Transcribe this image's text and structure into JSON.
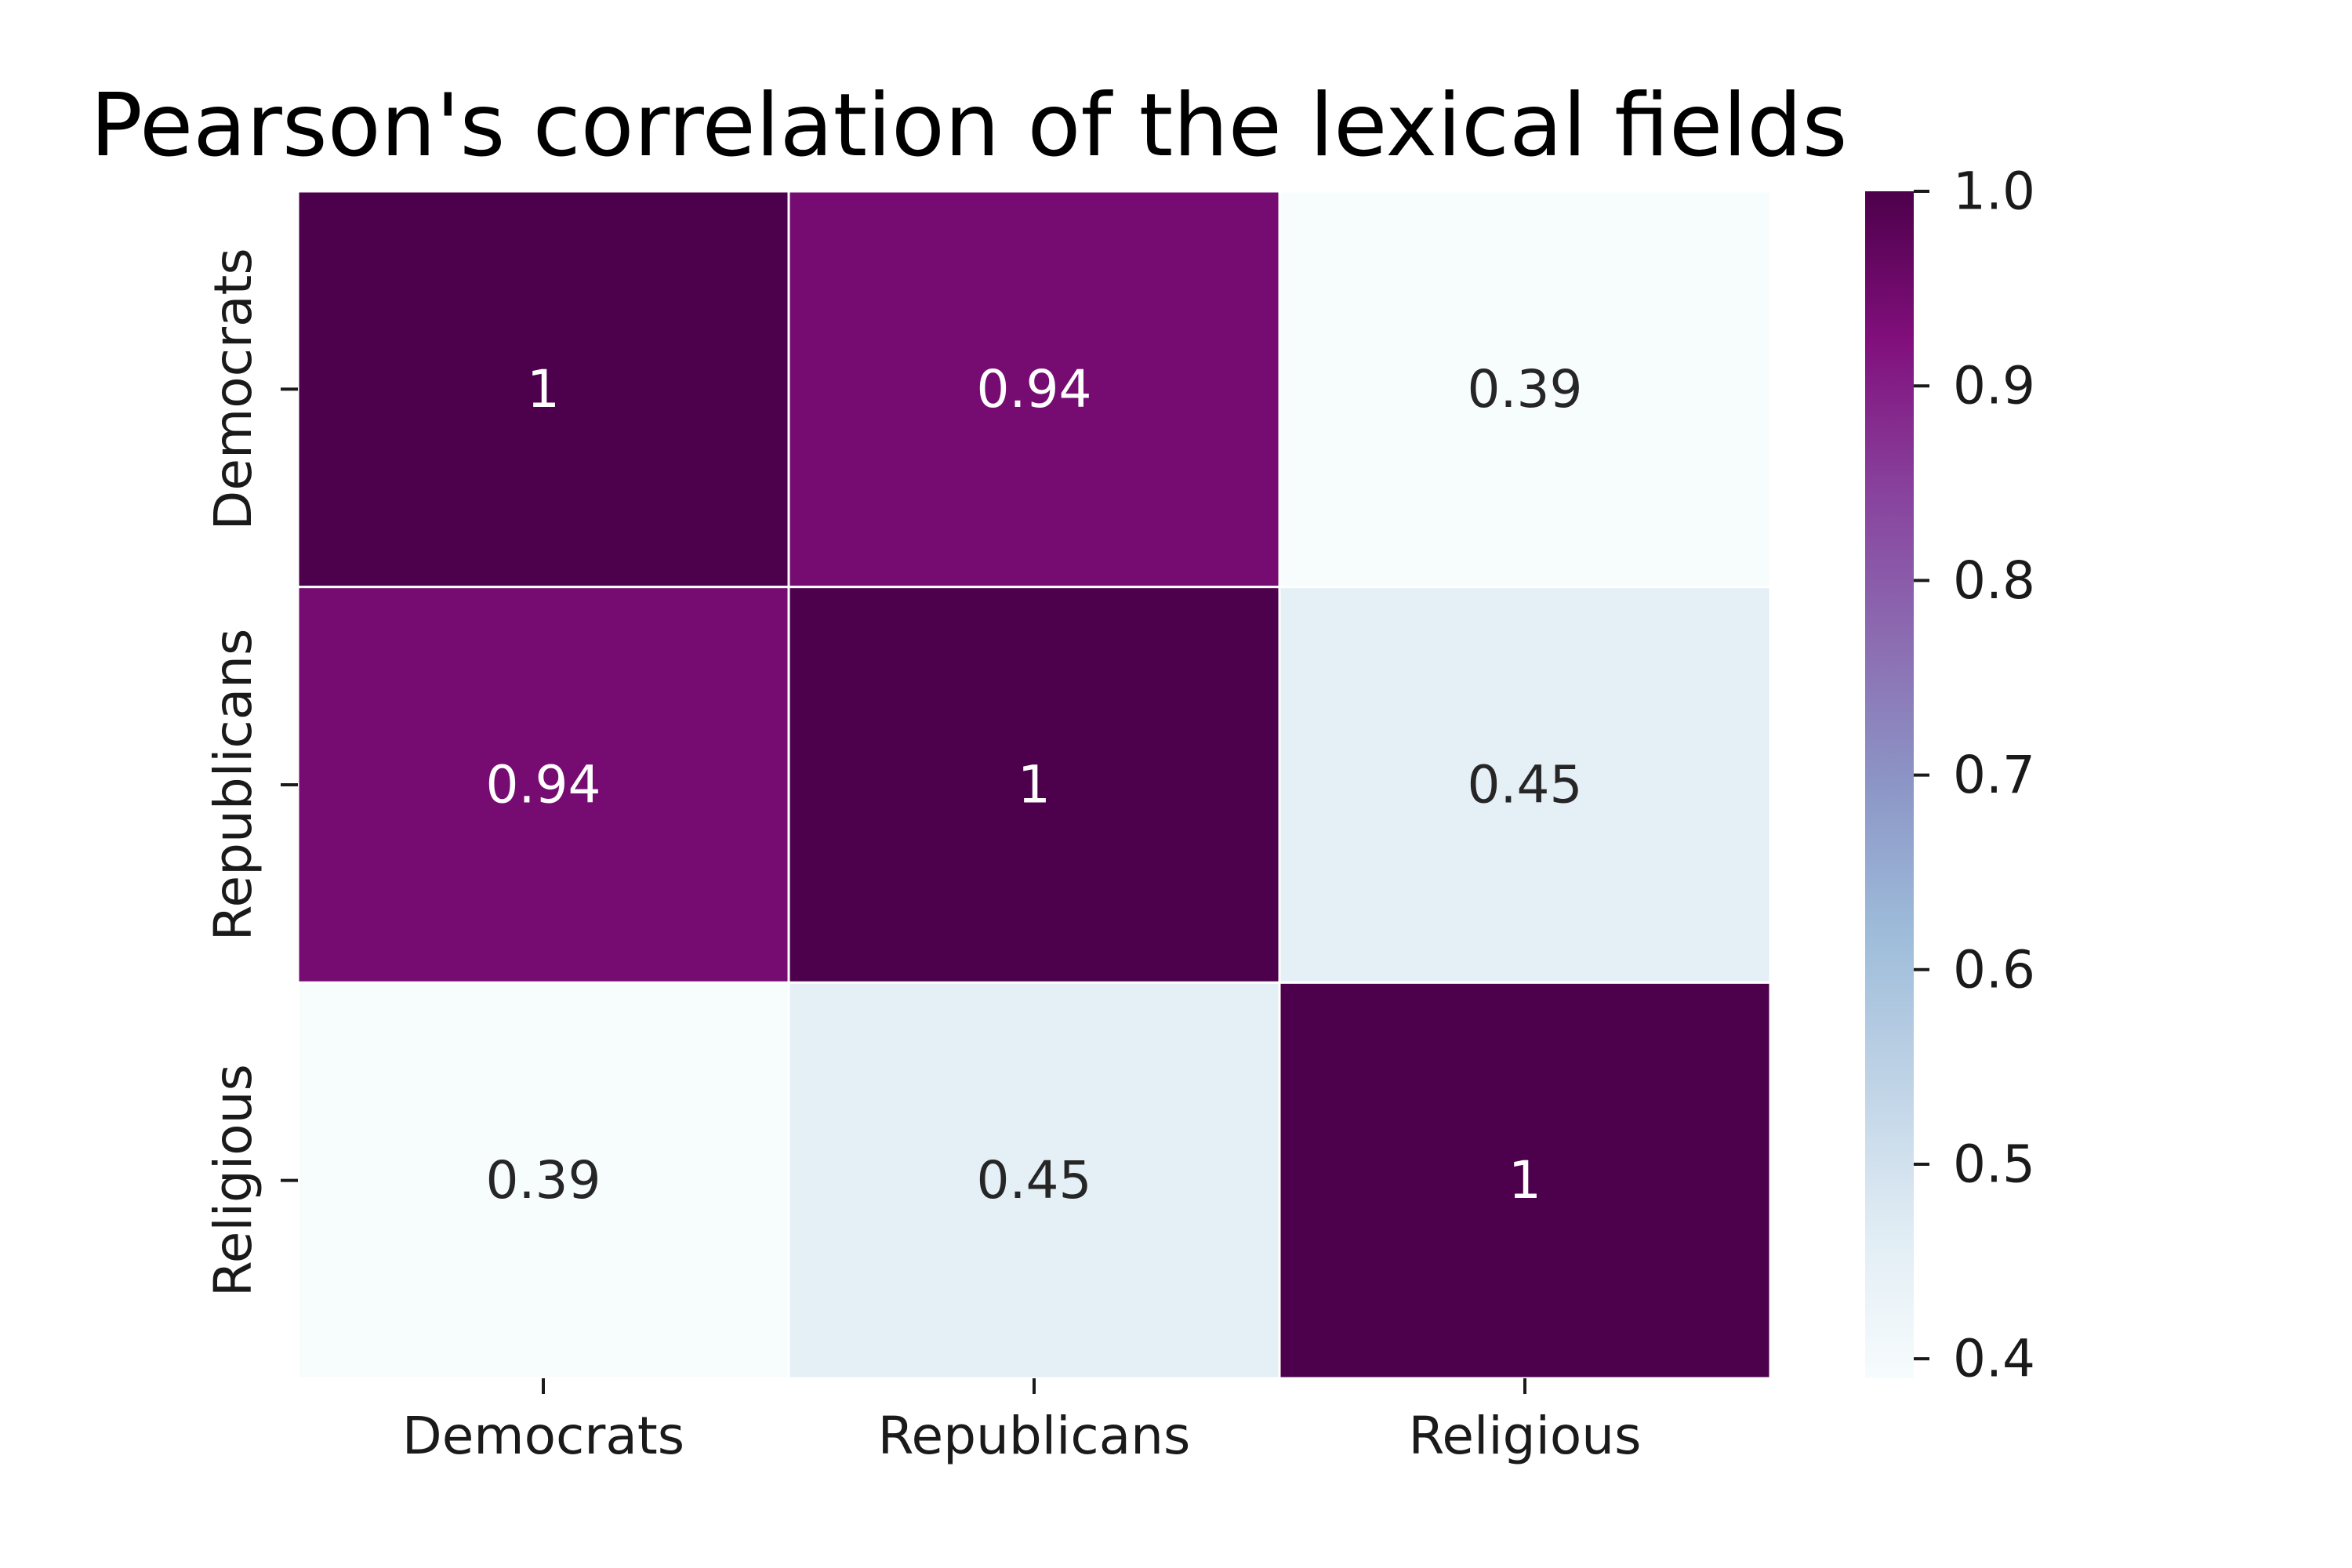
{
  "chart_data": {
    "type": "heatmap",
    "title": "Pearson's correlation of the lexical fields",
    "x_categories": [
      "Democrats",
      "Republicans",
      "Religious"
    ],
    "y_categories": [
      "Democrats",
      "Republicans",
      "Religious"
    ],
    "values": [
      [
        1.0,
        0.94,
        0.39
      ],
      [
        0.94,
        1.0,
        0.45
      ],
      [
        0.39,
        0.45,
        1.0
      ]
    ],
    "cell_labels": [
      [
        "1",
        "0.94",
        "0.39"
      ],
      [
        "0.94",
        "1",
        "0.45"
      ],
      [
        "0.39",
        "0.45",
        "1"
      ]
    ],
    "colorbar": {
      "min": 0.39,
      "max": 1.0,
      "ticks": [
        0.4,
        0.5,
        0.6,
        0.7,
        0.8,
        0.9,
        1.0
      ],
      "tick_labels": [
        "0.4",
        "0.5",
        "0.6",
        "0.7",
        "0.8",
        "0.9",
        "1.0"
      ]
    },
    "colormap": [
      "#f7fcfd",
      "#e0ecf4",
      "#bfd3e6",
      "#9ebcda",
      "#8c96c6",
      "#8c6bb1",
      "#88419d",
      "#810f7c",
      "#4d004b"
    ],
    "text_colors": {
      "light_bg": "#262626",
      "dark_bg": "#ffffff"
    }
  }
}
